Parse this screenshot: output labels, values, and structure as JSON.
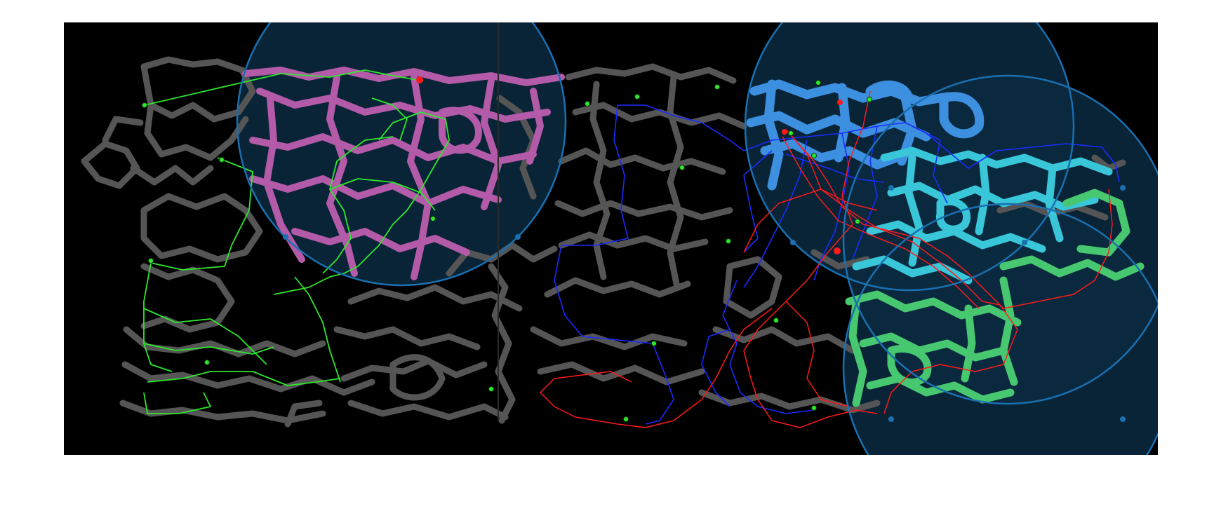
{
  "colors": {
    "page_background": "#ffffff",
    "map_background": "#000000",
    "road_network": "#555555",
    "zone_fill": "#0b2a40",
    "zone_outline": "#1a6fb0",
    "handle_dot": "#1a6fb0",
    "region_magenta": "#b35aa8",
    "region_blue": "#3d8fe0",
    "region_cyan": "#38c6d8",
    "region_green": "#47c870",
    "route_green": "#2ee82e",
    "route_blue": "#1a2bff",
    "route_red": "#ff1a1a",
    "waypoint_green": "#2ee82e",
    "marker_red": "#ff1a1a"
  },
  "layers": {
    "zones": [
      "zone-magenta",
      "zone-blue",
      "zone-cyan",
      "zone-green"
    ],
    "regions": [
      "magenta",
      "blue",
      "cyan",
      "green"
    ],
    "routes": [
      "green",
      "blue",
      "red"
    ]
  }
}
